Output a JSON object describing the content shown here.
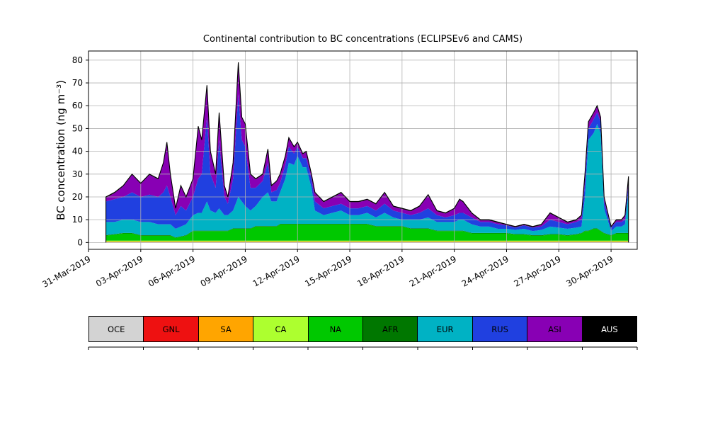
{
  "title": "Continental contribution to BC concentrations (ECLIPSEv6 and CAMS)",
  "axes": {
    "ylabel": "BC concentration (ng m⁻³)",
    "yticks": [
      0,
      10,
      20,
      30,
      40,
      50,
      60,
      70,
      80
    ],
    "xticks": [
      {
        "day": 0,
        "label": "31-Mar-2019"
      },
      {
        "day": 3,
        "label": "03-Apr-2019"
      },
      {
        "day": 6,
        "label": "06-Apr-2019"
      },
      {
        "day": 9,
        "label": "09-Apr-2019"
      },
      {
        "day": 12,
        "label": "12-Apr-2019"
      },
      {
        "day": 15,
        "label": "15-Apr-2019"
      },
      {
        "day": 18,
        "label": "18-Apr-2019"
      },
      {
        "day": 21,
        "label": "21-Apr-2019"
      },
      {
        "day": 24,
        "label": "24-Apr-2019"
      },
      {
        "day": 27,
        "label": "27-Apr-2019"
      },
      {
        "day": 30,
        "label": "30-Apr-2019"
      }
    ]
  },
  "chart_data": {
    "type": "area",
    "stacked": true,
    "x_unit": "days since 31-Mar-2019",
    "xlim": [
      0,
      31.5
    ],
    "ylim": [
      -3,
      84
    ],
    "grid": true,
    "outline_color": "#000000",
    "x": [
      1.0,
      1.5,
      2.0,
      2.5,
      3.0,
      3.5,
      4.0,
      4.3,
      4.5,
      4.7,
      5.0,
      5.3,
      5.6,
      6.0,
      6.3,
      6.5,
      6.8,
      7.0,
      7.3,
      7.5,
      7.8,
      8.0,
      8.3,
      8.6,
      8.8,
      9.0,
      9.3,
      9.6,
      10.0,
      10.3,
      10.5,
      10.8,
      11.0,
      11.3,
      11.5,
      11.8,
      12.0,
      12.3,
      12.5,
      12.8,
      13.0,
      13.5,
      14.0,
      14.5,
      15.0,
      15.5,
      16.0,
      16.5,
      17.0,
      17.5,
      18.0,
      18.5,
      19.0,
      19.5,
      20.0,
      20.5,
      21.0,
      21.3,
      21.5,
      22.0,
      22.5,
      23.0,
      23.5,
      24.0,
      24.5,
      25.0,
      25.5,
      26.0,
      26.5,
      27.0,
      27.5,
      28.0,
      28.3,
      28.5,
      28.7,
      29.0,
      29.2,
      29.4,
      29.6,
      30.0,
      30.3,
      30.6,
      30.8,
      31.0
    ],
    "series": [
      {
        "name": "OCE",
        "color": "#d3d3d3",
        "constant": 0.2
      },
      {
        "name": "GNL",
        "color": "#ee1111",
        "constant": 0.05
      },
      {
        "name": "SA",
        "color": "#ffa500",
        "constant": 0.15
      },
      {
        "name": "CA",
        "color": "#adff2f",
        "constant": 0.4
      },
      {
        "name": "NA",
        "color": "#00c800",
        "values": [
          2.2,
          2.7,
          3.2,
          3.2,
          2.2,
          2.2,
          2.2,
          2.2,
          2.2,
          2.2,
          1.2,
          1.7,
          2.2,
          4.2,
          4.2,
          4.2,
          4.2,
          4.2,
          4.2,
          4.2,
          4.2,
          4.2,
          5.2,
          5.2,
          5.2,
          5.2,
          5.2,
          6.2,
          6.2,
          6.2,
          6.2,
          6.2,
          7.2,
          7.2,
          7.2,
          7.2,
          7.2,
          7.2,
          7.2,
          7.2,
          7.2,
          7.2,
          7.2,
          7.2,
          7.2,
          7.2,
          7.2,
          6.2,
          6.2,
          6.2,
          6.2,
          5.2,
          5.2,
          5.2,
          4.2,
          4.2,
          4.2,
          4.2,
          4.2,
          3.2,
          3.2,
          3.2,
          3.2,
          3.2,
          2.7,
          2.7,
          2.2,
          2.2,
          2.7,
          2.7,
          2.2,
          2.7,
          3.2,
          4.2,
          4.2,
          5.2,
          5.2,
          4.2,
          3.2,
          2.2,
          3.2,
          3.2,
          3.2,
          3.2
        ]
      },
      {
        "name": "AFR",
        "color": "#007700",
        "constant": 0.2
      },
      {
        "name": "EUR",
        "color": "#00b2c4",
        "values": [
          5.8,
          5.3,
          5.8,
          5.8,
          5.8,
          5.8,
          4.8,
          4.8,
          4.8,
          4.8,
          3.8,
          4.3,
          4.8,
          6.8,
          7.8,
          7.8,
          12.8,
          8.8,
          7.8,
          9.8,
          6.8,
          6.8,
          7.8,
          13.8,
          11.8,
          9.8,
          7.8,
          8.8,
          12.8,
          14.8,
          10.8,
          10.8,
          13.8,
          19.8,
          26.8,
          25.8,
          29.8,
          24.8,
          24.8,
          15.8,
          5.8,
          3.8,
          4.8,
          5.8,
          3.8,
          3.8,
          4.8,
          3.8,
          5.8,
          3.8,
          2.8,
          3.8,
          3.8,
          4.8,
          3.8,
          3.8,
          3.8,
          4.8,
          4.8,
          3.8,
          2.8,
          2.8,
          1.8,
          1.8,
          1.8,
          2.3,
          1.8,
          2.3,
          3.3,
          2.8,
          2.8,
          2.8,
          2.8,
          14.8,
          39.8,
          41.8,
          45.8,
          42.8,
          10.8,
          1.8,
          2.8,
          2.8,
          3.8,
          17.8
        ]
      },
      {
        "name": "RUS",
        "color": "#2040e0",
        "values": [
          9,
          10,
          10,
          12,
          11,
          12,
          12,
          14,
          17,
          12,
          6,
          9,
          6,
          8,
          15,
          17,
          37,
          16,
          11,
          30,
          8,
          5,
          14,
          45,
          27,
          26,
          10,
          8,
          7,
          13,
          4,
          5,
          4,
          6,
          7,
          5,
          4,
          4,
          4,
          4,
          4,
          3,
          3,
          3,
          3,
          3,
          3,
          3,
          4,
          3,
          3,
          2,
          3,
          4,
          3,
          2,
          3,
          3,
          3,
          3,
          2,
          2,
          2,
          1.5,
          1,
          1.5,
          1.5,
          1.5,
          3,
          2.5,
          2,
          2.5,
          3,
          6,
          5,
          6,
          5,
          5,
          3,
          1.5,
          2,
          2,
          2,
          4
        ]
      },
      {
        "name": "ASI",
        "color": "#8800b4",
        "values": [
          1.7,
          2.7,
          4.7,
          7.7,
          5.7,
          8.7,
          7.7,
          12.7,
          18.7,
          9.7,
          2.7,
          8.7,
          5.7,
          7.7,
          22.7,
          14.7,
          13.7,
          9.7,
          5.7,
          11.7,
          4.7,
          2.7,
          6.7,
          13.7,
          9.7,
          9.7,
          5.7,
          3.7,
          2.7,
          5.7,
          2.7,
          3.7,
          3.7,
          3.7,
          3.7,
          2.7,
          1.7,
          1.7,
          2.7,
          1.7,
          3.7,
          2.7,
          3.7,
          4.7,
          2.7,
          2.7,
          2.7,
          2.7,
          4.7,
          1.7,
          1.7,
          1.7,
          2.7,
          5.7,
          1.7,
          1.7,
          2.7,
          5.7,
          4.7,
          1.7,
          0.7,
          0.7,
          0.7,
          0.2,
          0.2,
          0.2,
          0.2,
          0.7,
          2.7,
          1.7,
          0.7,
          0.7,
          1.7,
          3.7,
          2.7,
          2.7,
          2.7,
          1.7,
          1.7,
          0.2,
          0.7,
          0.7,
          1.7,
          2.7
        ]
      },
      {
        "name": "AUS",
        "color": "#000000",
        "constant": 0.3
      }
    ]
  },
  "legend": {
    "items": [
      {
        "label": "OCE",
        "color": "#d3d3d3",
        "text": "#000000"
      },
      {
        "label": "GNL",
        "color": "#ee1111",
        "text": "#000000"
      },
      {
        "label": "SA",
        "color": "#ffa500",
        "text": "#000000"
      },
      {
        "label": "CA",
        "color": "#adff2f",
        "text": "#000000"
      },
      {
        "label": "NA",
        "color": "#00c800",
        "text": "#000000"
      },
      {
        "label": "AFR",
        "color": "#007700",
        "text": "#000000"
      },
      {
        "label": "EUR",
        "color": "#00b2c4",
        "text": "#000000"
      },
      {
        "label": "RUS",
        "color": "#2040e0",
        "text": "#000000"
      },
      {
        "label": "ASI",
        "color": "#8800b4",
        "text": "#000000"
      },
      {
        "label": "AUS",
        "color": "#000000",
        "text": "#ffffff"
      }
    ]
  }
}
